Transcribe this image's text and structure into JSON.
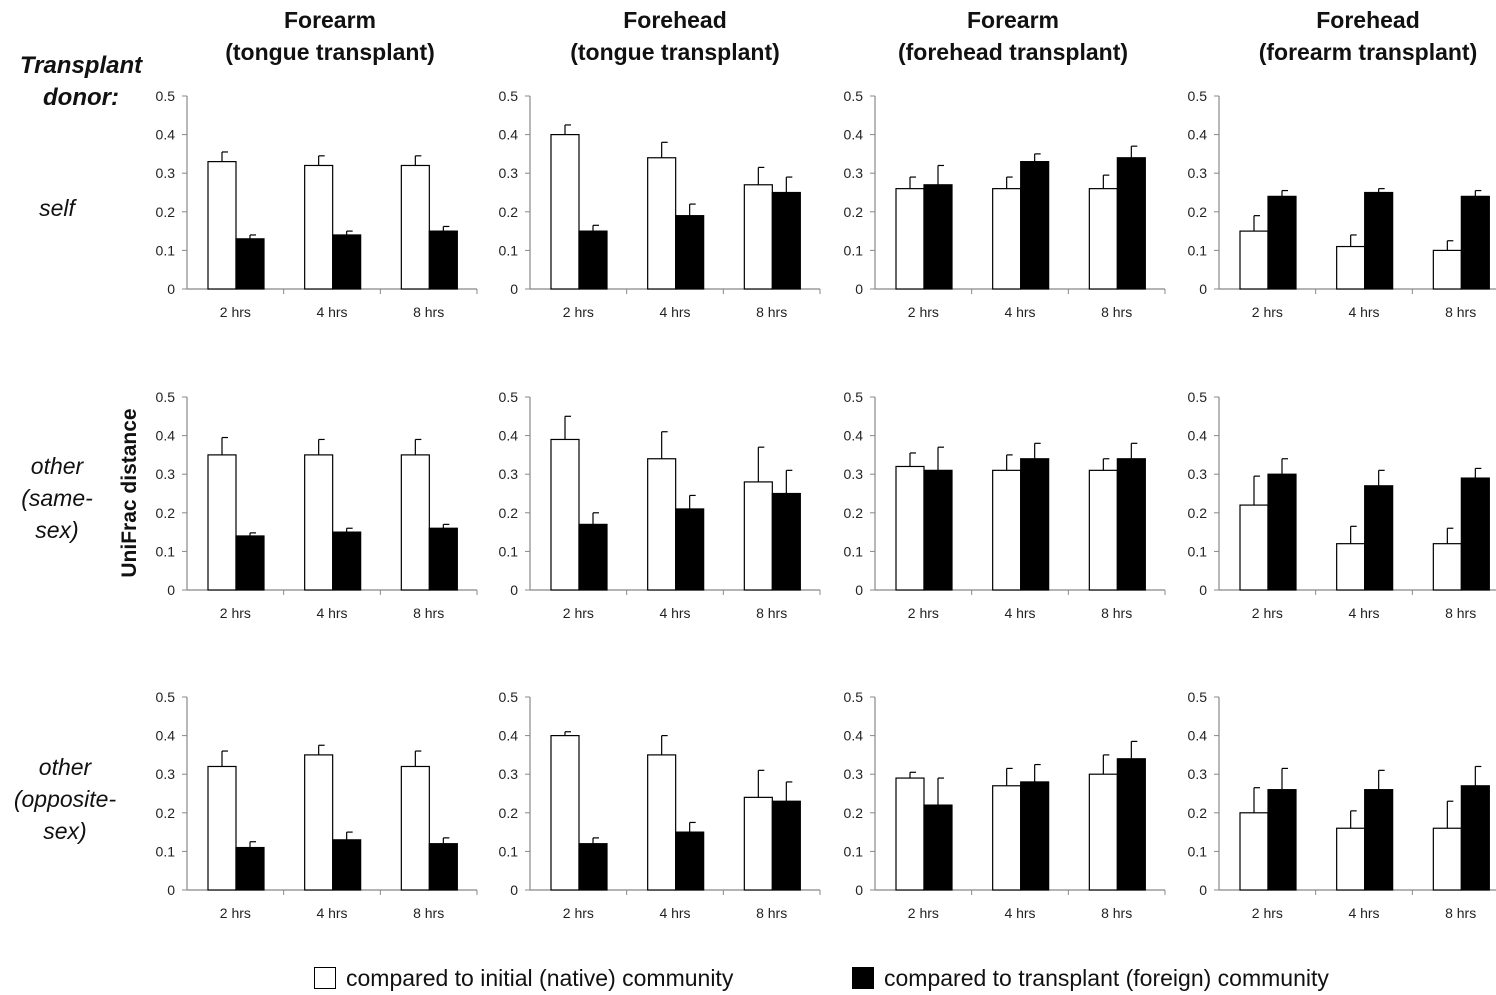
{
  "figure": {
    "donor_title": [
      "Transplant",
      "donor:"
    ],
    "ylabel": "UniFrac distance",
    "columns": [
      {
        "line1": "Forearm",
        "line2": "(tongue transplant)"
      },
      {
        "line1": "Forehead",
        "line2": "(tongue transplant)"
      },
      {
        "line1": "Forearm",
        "line2": "(forehead transplant)"
      },
      {
        "line1": "Forehead",
        "line2": "(forearm transplant)"
      }
    ],
    "rows": [
      {
        "lines": [
          "self"
        ]
      },
      {
        "lines": [
          "other",
          "(same-",
          "sex)"
        ]
      },
      {
        "lines": [
          "other",
          "(opposite-",
          "sex)"
        ]
      }
    ],
    "legend": [
      {
        "label": "compared to initial (native) community",
        "color": "#ffffff"
      },
      {
        "label": "compared to transplant (foreign) community",
        "color": "#000000"
      }
    ]
  },
  "chart_data": {
    "type": "bar",
    "categories": [
      "2 hrs",
      "4 hrs",
      "8 hrs"
    ],
    "yticks": [
      "0",
      "0.1",
      "0.2",
      "0.3",
      "0.4",
      "0.5"
    ],
    "ylim": [
      0,
      0.5
    ],
    "colors": {
      "native": "#ffffff",
      "foreign": "#000000"
    },
    "panels": [
      {
        "row": 0,
        "col": 0,
        "native": [
          0.33,
          0.32,
          0.32
        ],
        "native_err": [
          0.025,
          0.025,
          0.025
        ],
        "foreign": [
          0.13,
          0.14,
          0.15
        ],
        "foreign_err": [
          0.01,
          0.01,
          0.012
        ]
      },
      {
        "row": 0,
        "col": 1,
        "native": [
          0.4,
          0.34,
          0.27
        ],
        "native_err": [
          0.025,
          0.04,
          0.045
        ],
        "foreign": [
          0.15,
          0.19,
          0.25
        ],
        "foreign_err": [
          0.015,
          0.03,
          0.04
        ]
      },
      {
        "row": 0,
        "col": 2,
        "native": [
          0.26,
          0.26,
          0.26
        ],
        "native_err": [
          0.03,
          0.03,
          0.035
        ],
        "foreign": [
          0.27,
          0.33,
          0.34
        ],
        "foreign_err": [
          0.05,
          0.02,
          0.03
        ]
      },
      {
        "row": 0,
        "col": 3,
        "native": [
          0.15,
          0.11,
          0.1
        ],
        "native_err": [
          0.04,
          0.03,
          0.025
        ],
        "foreign": [
          0.24,
          0.25,
          0.24
        ],
        "foreign_err": [
          0.015,
          0.01,
          0.015
        ]
      },
      {
        "row": 1,
        "col": 0,
        "native": [
          0.35,
          0.35,
          0.35
        ],
        "native_err": [
          0.045,
          0.04,
          0.04
        ],
        "foreign": [
          0.14,
          0.15,
          0.16
        ],
        "foreign_err": [
          0.008,
          0.01,
          0.01
        ]
      },
      {
        "row": 1,
        "col": 1,
        "native": [
          0.39,
          0.34,
          0.28
        ],
        "native_err": [
          0.06,
          0.07,
          0.09
        ],
        "foreign": [
          0.17,
          0.21,
          0.25
        ],
        "foreign_err": [
          0.03,
          0.035,
          0.06
        ]
      },
      {
        "row": 1,
        "col": 2,
        "native": [
          0.32,
          0.31,
          0.31
        ],
        "native_err": [
          0.035,
          0.04,
          0.03
        ],
        "foreign": [
          0.31,
          0.34,
          0.34
        ],
        "foreign_err": [
          0.06,
          0.04,
          0.04
        ]
      },
      {
        "row": 1,
        "col": 3,
        "native": [
          0.22,
          0.12,
          0.12
        ],
        "native_err": [
          0.075,
          0.045,
          0.04
        ],
        "foreign": [
          0.3,
          0.27,
          0.29
        ],
        "foreign_err": [
          0.04,
          0.04,
          0.025
        ]
      },
      {
        "row": 2,
        "col": 0,
        "native": [
          0.32,
          0.35,
          0.32
        ],
        "native_err": [
          0.04,
          0.025,
          0.04
        ],
        "foreign": [
          0.11,
          0.13,
          0.12
        ],
        "foreign_err": [
          0.015,
          0.02,
          0.015
        ]
      },
      {
        "row": 2,
        "col": 1,
        "native": [
          0.4,
          0.35,
          0.24
        ],
        "native_err": [
          0.01,
          0.05,
          0.07
        ],
        "foreign": [
          0.12,
          0.15,
          0.23
        ],
        "foreign_err": [
          0.015,
          0.025,
          0.05
        ]
      },
      {
        "row": 2,
        "col": 2,
        "native": [
          0.29,
          0.27,
          0.3
        ],
        "native_err": [
          0.015,
          0.045,
          0.05
        ],
        "foreign": [
          0.22,
          0.28,
          0.34
        ],
        "foreign_err": [
          0.07,
          0.045,
          0.045
        ]
      },
      {
        "row": 2,
        "col": 3,
        "native": [
          0.2,
          0.16,
          0.16
        ],
        "native_err": [
          0.065,
          0.045,
          0.07
        ],
        "foreign": [
          0.26,
          0.26,
          0.27
        ],
        "foreign_err": [
          0.055,
          0.05,
          0.05
        ]
      }
    ]
  }
}
